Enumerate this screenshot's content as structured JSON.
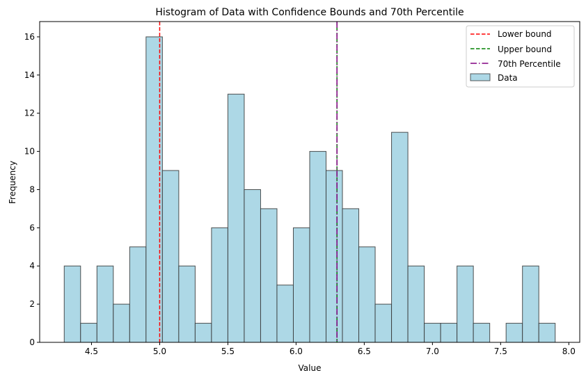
{
  "chart_data": {
    "type": "bar",
    "title": "Histogram of Data with Confidence Bounds and 70th Percentile",
    "xlabel": "Value",
    "ylabel": "Frequency",
    "xlim": [
      4.12,
      8.08
    ],
    "ylim": [
      0,
      16.8
    ],
    "grid": false,
    "bins": {
      "start": 4.3,
      "width": 0.12
    },
    "values": [
      4,
      1,
      4,
      2,
      5,
      16,
      9,
      4,
      1,
      6,
      13,
      8,
      7,
      3,
      6,
      10,
      9,
      7,
      5,
      2,
      11,
      4,
      1,
      1,
      4,
      1,
      0,
      1,
      4,
      1
    ],
    "xticks": [
      "4.5",
      "5.0",
      "5.5",
      "6.0",
      "6.5",
      "7.0",
      "7.5",
      "8.0"
    ],
    "xtick_values": [
      4.5,
      5.0,
      5.5,
      6.0,
      6.5,
      7.0,
      7.5,
      8.0
    ],
    "yticks": [
      "0",
      "2",
      "4",
      "6",
      "8",
      "10",
      "12",
      "14",
      "16"
    ],
    "ytick_values": [
      0,
      2,
      4,
      6,
      8,
      10,
      12,
      14,
      16
    ],
    "bar_color": "#add8e6",
    "vlines": [
      {
        "name": "Lower bound",
        "x": 5.0,
        "color": "#ff0000",
        "style": "dashed"
      },
      {
        "name": "Upper bound",
        "x": 6.3,
        "color": "#008000",
        "style": "dashed"
      },
      {
        "name": "70th Percentile",
        "x": 6.3,
        "color": "#800080",
        "style": "dashdot"
      }
    ],
    "legend": {
      "placement": "top-right",
      "entries": [
        "Lower bound",
        "Upper bound",
        "70th Percentile",
        "Data"
      ]
    }
  }
}
